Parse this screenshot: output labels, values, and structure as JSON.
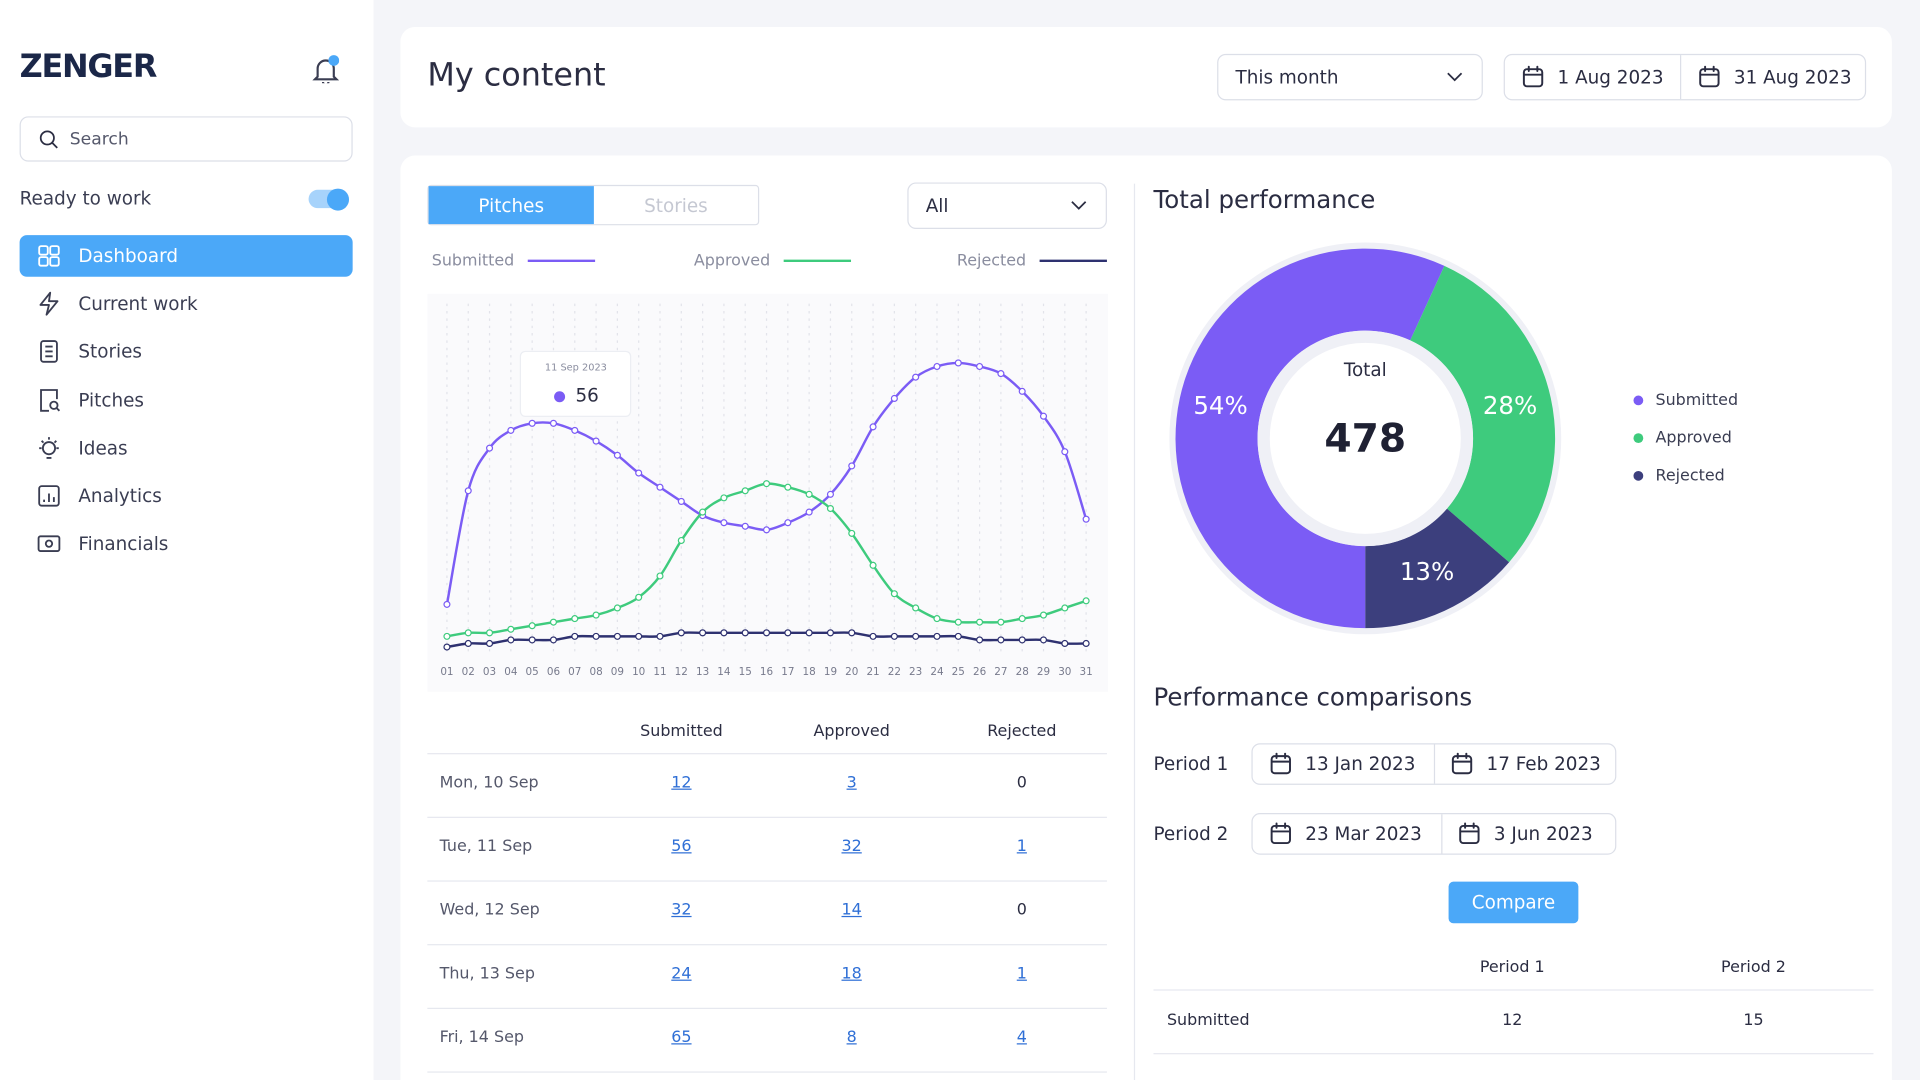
{
  "sidebar": {
    "logo": "ZENGER",
    "search_placeholder": "Search",
    "status_label": "Ready to work",
    "nav": [
      "Dashboard",
      "Current work",
      "Stories",
      "Pitches",
      "Ideas",
      "Analytics",
      "Financials"
    ]
  },
  "header": {
    "title": "My content",
    "period": "This month",
    "date_from": "1 Aug 2023",
    "date_to": "31 Aug 2023"
  },
  "content": {
    "tabs": [
      "Pitches",
      "Stories"
    ],
    "filter": "All",
    "table": {
      "headers": [
        "Submitted",
        "Approved",
        "Rejected"
      ],
      "rows": [
        [
          "Mon, 10 Sep",
          12,
          3,
          0
        ],
        [
          "Tue, 11 Sep",
          56,
          32,
          1
        ],
        [
          "Wed, 12 Sep",
          32,
          14,
          0
        ],
        [
          "Thu, 13 Sep",
          24,
          18,
          1
        ],
        [
          "Fri, 14 Sep",
          65,
          8,
          4
        ]
      ]
    }
  },
  "chart_data": [
    {
      "type": "line",
      "categories": [
        "01",
        "02",
        "03",
        "04",
        "05",
        "06",
        "07",
        "08",
        "09",
        "10",
        "11",
        "12",
        "13",
        "14",
        "15",
        "16",
        "17",
        "18",
        "19",
        "20",
        "21",
        "22",
        "23",
        "24",
        "25",
        "26",
        "27",
        "28",
        "29",
        "30",
        "31"
      ],
      "series": [
        {
          "name": "Submitted",
          "color": "#7b5cf5",
          "values": [
            16,
            48,
            60,
            65,
            67,
            67,
            65,
            62,
            58,
            53,
            49,
            45,
            41,
            39,
            38,
            37,
            39,
            42,
            47,
            55,
            66,
            74,
            80,
            83,
            84,
            83,
            81,
            76,
            69,
            59,
            40
          ]
        },
        {
          "name": "Approved",
          "color": "#3ecb7d",
          "values": [
            7,
            8,
            8,
            9,
            10,
            11,
            12,
            13,
            15,
            18,
            24,
            34,
            42,
            46,
            48,
            50,
            49,
            47,
            43,
            36,
            27,
            19,
            15,
            12,
            11,
            11,
            11,
            12,
            13,
            15,
            17
          ]
        },
        {
          "name": "Rejected",
          "color": "#2e3170",
          "values": [
            4,
            5,
            5,
            6,
            6,
            6,
            7,
            7,
            7,
            7,
            7,
            8,
            8,
            8,
            8,
            8,
            8,
            8,
            8,
            8,
            7,
            7,
            7,
            7,
            7,
            6,
            6,
            6,
            6,
            5,
            5
          ]
        }
      ],
      "ylim": [
        0,
        100
      ],
      "tooltip": {
        "date": "11 Sep 2023",
        "value": 56
      }
    },
    {
      "type": "donut",
      "title": "Total performance",
      "center_label": "Total",
      "total": 478,
      "categories": [
        "Submitted",
        "Approved",
        "Rejected"
      ],
      "values": [
        54,
        28,
        13
      ],
      "value_labels": [
        "54%",
        "28%",
        "13%"
      ],
      "colors": [
        "#7b5cf5",
        "#3ecb7d",
        "#3c3f7d"
      ]
    }
  ],
  "comparisons": {
    "title": "Performance comparisons",
    "periods": [
      {
        "label": "Period 1",
        "from": "13 Jan 2023",
        "to": "17 Feb 2023"
      },
      {
        "label": "Period 2",
        "from": "23 Mar 2023",
        "to": "3 Jun 2023"
      }
    ],
    "button": "Compare",
    "table": {
      "headers": [
        "Period 1",
        "Period 2"
      ],
      "rows": [
        [
          "Submitted",
          12,
          15
        ]
      ]
    }
  }
}
